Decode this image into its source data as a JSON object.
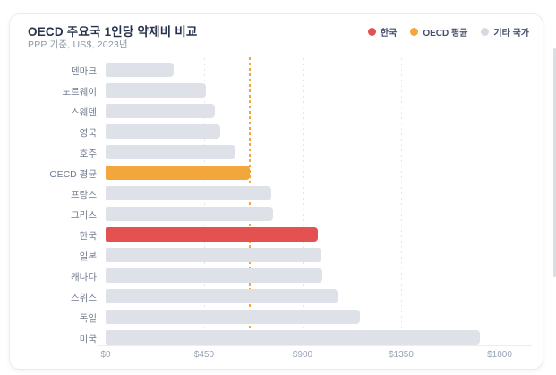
{
  "card": {
    "title": "OECD 주요국 1인당 약제비 비교",
    "subtitle": "PPP 기준, US$, 2023년"
  },
  "legend": [
    {
      "key": "korea",
      "label": "한국",
      "color": "#e35151"
    },
    {
      "key": "oecd-average",
      "label": "OECD 평균",
      "color": "#f2a63c"
    },
    {
      "key": "other-countries",
      "label": "기타 국가",
      "color": "#d6dbe2"
    }
  ],
  "chart_data": {
    "type": "bar",
    "orientation": "horizontal",
    "title": "OECD 주요국 1인당 약제비 비교",
    "subtitle": "PPP 기준, US$, 2023년",
    "unit": "US$, PPP 기준, 2023년",
    "categories": [
      "덴마크",
      "노르웨이",
      "스웨덴",
      "영국",
      "호주",
      "OECD 평균",
      "프랑스",
      "그리스",
      "한국",
      "일본",
      "캐나다",
      "스위스",
      "독일",
      "미국"
    ],
    "category_keys": [
      "denmark",
      "norway",
      "sweden",
      "uk",
      "australia",
      "oecd-average",
      "france",
      "greece",
      "korea",
      "japan",
      "canada",
      "switzerland",
      "germany",
      "usa"
    ],
    "values": [
      310,
      460,
      500,
      525,
      595,
      660,
      755,
      765,
      970,
      985,
      990,
      1060,
      1160,
      1710
    ],
    "bar_color_keys": [
      "gray",
      "gray",
      "gray",
      "gray",
      "gray",
      "orange",
      "gray",
      "gray",
      "red",
      "gray",
      "gray",
      "gray",
      "gray",
      "gray"
    ],
    "color_map": {
      "gray": "#dee2e8",
      "orange": "#f2a63c",
      "red": "#e35151"
    },
    "xlim": [
      0,
      1800
    ],
    "x_ticks": [
      {
        "value": 0,
        "label": "$0"
      },
      {
        "value": 450,
        "label": "$450"
      },
      {
        "value": 900,
        "label": "$900"
      },
      {
        "value": 1350,
        "label": "$1350"
      },
      {
        "value": 1800,
        "label": "$1800"
      }
    ],
    "reference_line": {
      "value": 660,
      "color": "#f2a63c",
      "style": "dotted",
      "meaning": "OECD 평균"
    },
    "gridlines": {
      "orientation": "vertical",
      "style": "dotted",
      "color": "#e1e5ec"
    },
    "legend_position": "top-right",
    "value_labels_shown": false
  }
}
